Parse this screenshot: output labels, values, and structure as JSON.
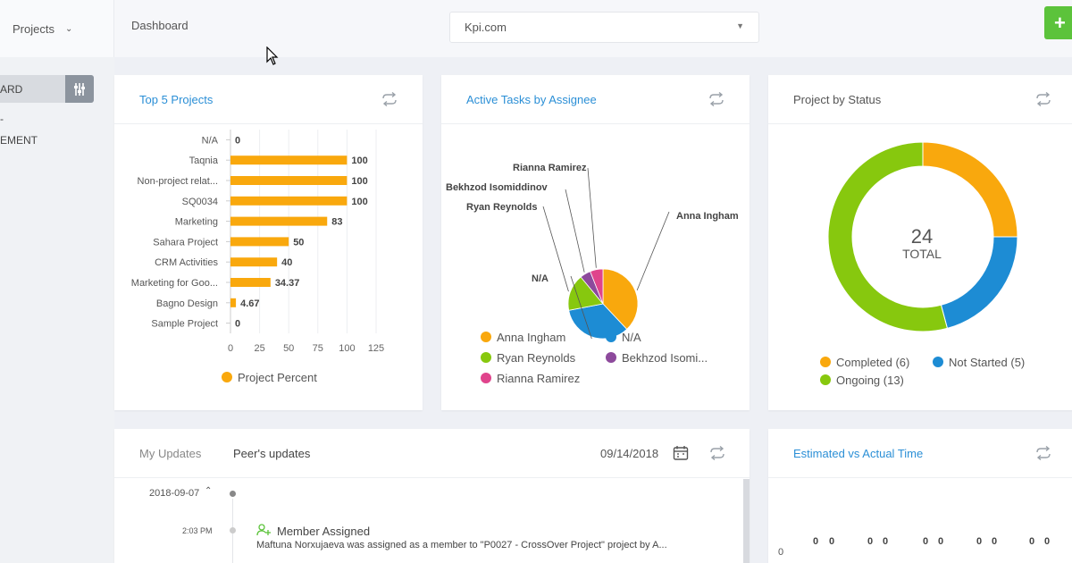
{
  "topbar": {
    "project_select": "Projects",
    "breadcrumb": "Dashboard",
    "site_select": "Kpi.com",
    "add_label": "+"
  },
  "sidebar": {
    "items": [
      {
        "label": "ARD"
      },
      {
        "label": "-"
      },
      {
        "label": "EMENT"
      }
    ]
  },
  "colors": {
    "orange": "#f9a80d",
    "blue": "#1d8cd4",
    "green": "#87c80e",
    "purple": "#8d4a9c",
    "pink": "#e0448c",
    "link": "#2b8fd6"
  },
  "top_projects": {
    "title": "Top 5 Projects",
    "chart_data": {
      "type": "bar",
      "orientation": "horizontal",
      "categories": [
        "N/A",
        "Taqnia",
        "Non-project relat...",
        "SQ0034",
        "Marketing",
        "Sahara Project",
        "CRM Activities",
        "Marketing for Goo...",
        "Bagno Design",
        "Sample Project"
      ],
      "value_labels": [
        "0",
        "100",
        "100",
        "100",
        "83",
        "50",
        "40",
        "34.37",
        "4.67",
        "0"
      ],
      "series": [
        {
          "name": "Project Percent",
          "values": [
            0,
            100,
            100,
            100,
            83,
            50,
            40,
            34.37,
            4.67,
            0
          ]
        }
      ],
      "xticks": [
        "0",
        "25",
        "50",
        "75",
        "100",
        "125"
      ],
      "xlim": [
        0,
        125
      ],
      "grid": true,
      "legend": "bottom"
    }
  },
  "active_tasks": {
    "title": "Active Tasks by Assignee",
    "chart_data": {
      "type": "pie",
      "labels": [
        "Anna Ingham",
        "N/A",
        "Ryan Reynolds",
        "Bekhzod Isomiddinov",
        "Rianna Ramirez"
      ],
      "values": [
        38,
        34,
        17,
        5,
        6
      ],
      "colors": [
        "#f9a80d",
        "#1d8cd4",
        "#87c80e",
        "#8d4a9c",
        "#e0448c"
      ],
      "legend_labels": [
        "Anna Ingham",
        "N/A",
        "Ryan Reynolds",
        "Bekhzod Isomi...",
        "Rianna Ramirez"
      ],
      "legend": "bottom"
    }
  },
  "project_status": {
    "title": "Project by Status",
    "center_value": "24",
    "center_label": "TOTAL",
    "chart_data": {
      "type": "pie",
      "donut": true,
      "labels": [
        "Completed",
        "Not Started",
        "Ongoing"
      ],
      "values": [
        6,
        5,
        13
      ],
      "colors": [
        "#f9a80d",
        "#1d8cd4",
        "#87c80e"
      ],
      "legend_labels": [
        "Completed (6)",
        "Not Started (5)",
        "Ongoing (13)"
      ],
      "legend": "bottom"
    }
  },
  "updates": {
    "tab_my": "My Updates",
    "tab_peers": "Peer's updates",
    "date": "09/14/2018",
    "group_date": "2018-09-07",
    "entry_time": "2:03 PM",
    "entry_title": "Member Assigned",
    "entry_text": "Maftuna Norxujaeva was assigned as a member to \"P0027 - CrossOver Project\" project by A..."
  },
  "estimated": {
    "title": "Estimated vs Actual Time",
    "axis_zero": "0",
    "bar_labels": [
      "0",
      "0",
      "0",
      "0",
      "0",
      "0",
      "0",
      "0",
      "0",
      "0"
    ]
  }
}
